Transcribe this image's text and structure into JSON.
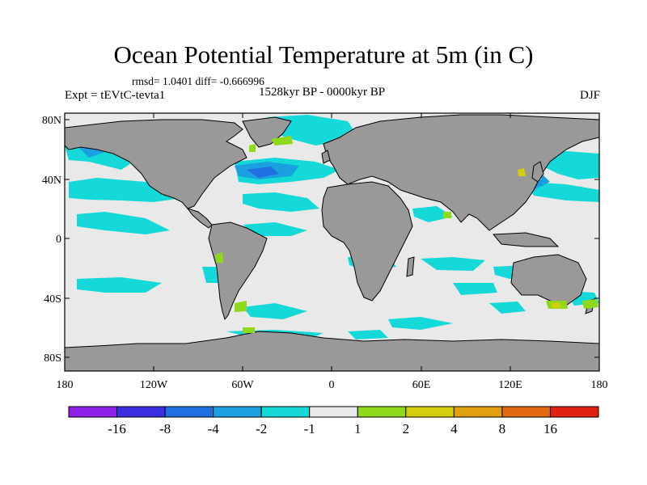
{
  "title": "Ocean Potential Temperature at 5m (in C)",
  "stats": "rmsd= 1.0401 diff= -0.666996",
  "experiment": "Expt = tEVtC-tevta1",
  "period": "1528kyr BP - 0000kyr BP",
  "season": "DJF",
  "lat_labels": [
    "80N",
    "40N",
    "0",
    "40S",
    "80S"
  ],
  "lon_labels": [
    "180",
    "120W",
    "60W",
    "0",
    "60E",
    "120E",
    "180"
  ],
  "colorbar": {
    "labels": [
      "-16",
      "-8",
      "-4",
      "-2",
      "-1",
      "1",
      "2",
      "4",
      "8",
      "16"
    ],
    "colors": [
      "#8d1fe6",
      "#3c2ee0",
      "#1f6fe0",
      "#1a9fe0",
      "#15d8d8",
      "#e9e9e9",
      "#8fd81a",
      "#d6cc10",
      "#e0a010",
      "#e06a10",
      "#e02010"
    ]
  },
  "map_colors": {
    "land": "#999999",
    "ocean_neutral": "#e9e9e9",
    "cool_1": "#15d8d8",
    "cool_2": "#1a9fe0",
    "cool_3": "#1f6fe0",
    "warm_1": "#8fd81a",
    "warm_2": "#d6cc10"
  }
}
